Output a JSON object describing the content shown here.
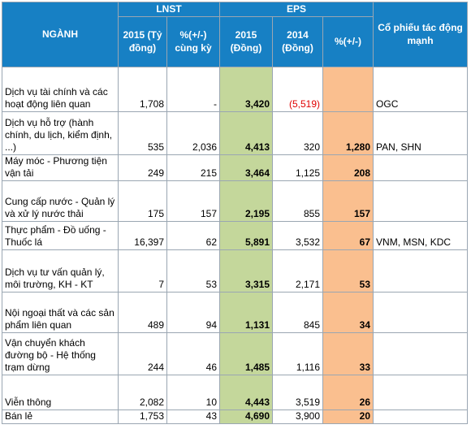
{
  "table": {
    "header": {
      "sector": "NGÀNH",
      "lnst": "LNST",
      "eps": "EPS",
      "stocks": "Cổ phiếu tác động mạnh",
      "columns": [
        "2015 (Tỷ đồng)",
        "%(+/-) cùng kỳ",
        "2015 (Đồng)",
        "2014 (Đồng)",
        "%(+/-)"
      ]
    },
    "rows": [
      [
        "Dịch vụ tài chính và các hoạt động liên quan",
        "1,708",
        "-",
        "3,420",
        "(5,519)",
        "",
        "OGC"
      ],
      [
        "Dịch vụ hỗ trợ (hành chính, du lịch, kiểm định, ...)",
        "535",
        "2,036",
        "4,413",
        "320",
        "1,280",
        "PAN, SHN"
      ],
      [
        "Máy móc - Phương tiện vận tải",
        "249",
        "215",
        "3,464",
        "1,125",
        "208",
        ""
      ],
      [
        "Cung cấp nước - Quản lý và xử lý nước thải",
        "175",
        "157",
        "2,195",
        "855",
        "157",
        ""
      ],
      [
        "Thực phẩm - Đồ uống - Thuốc lá",
        "16,397",
        "62",
        "5,891",
        "3,532",
        "67",
        "VNM, MSN, KDC"
      ],
      [
        "Dịch vụ tư vấn quản lý, môi trường, KH - KT",
        "7",
        "53",
        "3,315",
        "2,171",
        "53",
        ""
      ],
      [
        "Nội ngoại thất và các sản phẩm liên quan",
        "489",
        "94",
        "1,131",
        "845",
        "34",
        ""
      ],
      [
        "Vận chuyển khách đường bộ - Hệ thống trạm dừng",
        "244",
        "46",
        "1,485",
        "1,116",
        "33",
        ""
      ],
      [
        "Viễn thông",
        "2,082",
        "10",
        "4,443",
        "3,519",
        "26",
        ""
      ],
      [
        "Bán lẻ",
        "1,753",
        "43",
        "4,690",
        "3,900",
        "20",
        ""
      ]
    ]
  }
}
